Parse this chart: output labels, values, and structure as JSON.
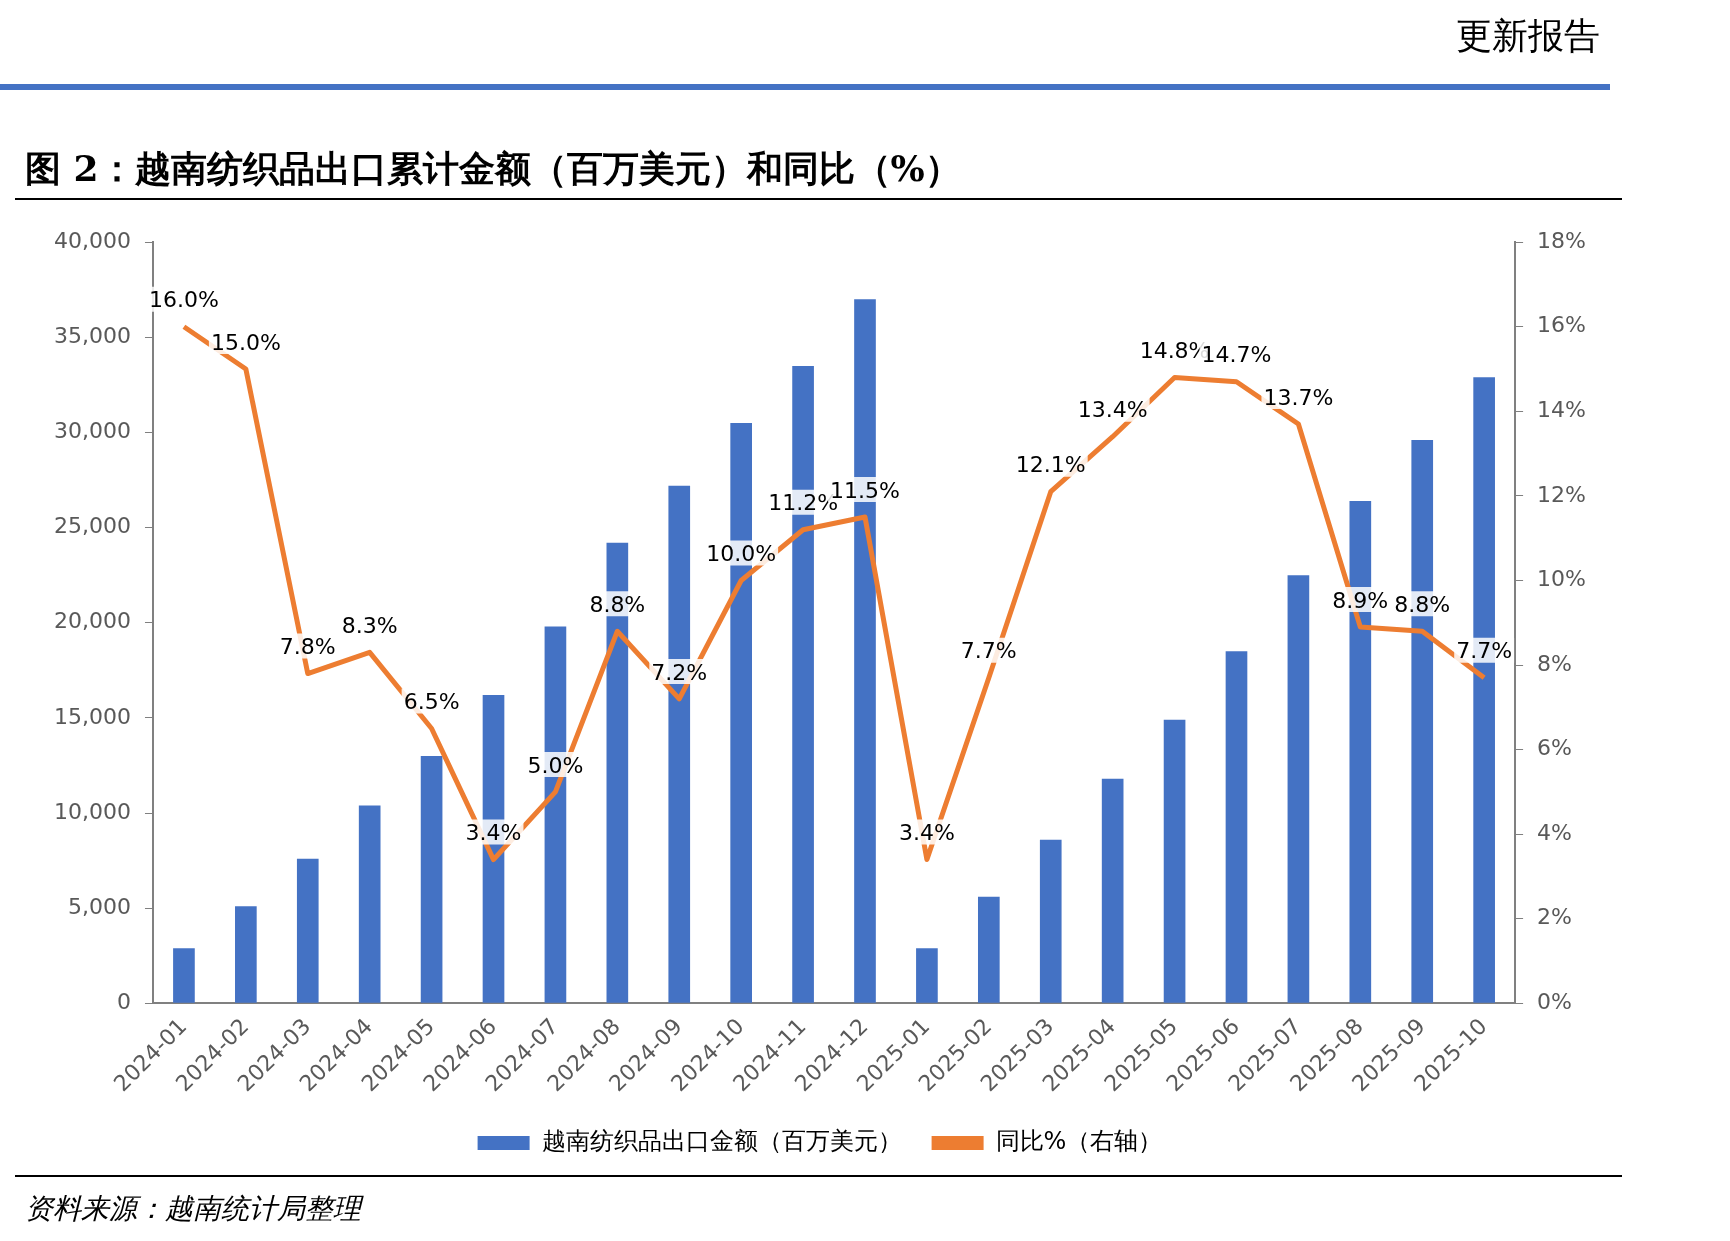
{
  "chart_data": {
    "type": "bar",
    "title": "图 2：越南纺织品出口累计金额（百万美元）和同比（%）",
    "categories": [
      "2024-01",
      "2024-02",
      "2024-03",
      "2024-04",
      "2024-05",
      "2024-06",
      "2024-07",
      "2024-08",
      "2024-09",
      "2024-10",
      "2024-11",
      "2024-12",
      "2025-01",
      "2025-02",
      "2025-03",
      "2025-04",
      "2025-05",
      "2025-06",
      "2025-07",
      "2025-08",
      "2025-09",
      "2025-10"
    ],
    "series": [
      {
        "name": "越南纺织品出口金额（百万美元）",
        "color": "#4472c4",
        "values": [
          2900,
          5100,
          7600,
          10400,
          13000,
          16200,
          19800,
          24200,
          27200,
          30500,
          33500,
          37000,
          2900,
          5600,
          8600,
          11800,
          14900,
          18500,
          22500,
          26400,
          29600,
          32900
        ]
      },
      {
        "name": "同比%（右轴）",
        "type": "line",
        "axis": "y2",
        "color": "#ed7d31",
        "values": [
          16.0,
          15.0,
          7.8,
          8.3,
          6.5,
          3.4,
          5.0,
          8.8,
          7.2,
          10.0,
          11.2,
          11.5,
          3.4,
          7.7,
          12.1,
          13.4,
          14.8,
          14.7,
          13.7,
          8.9,
          8.8,
          7.7
        ],
        "value_labels": [
          "16.0%",
          "15.0%",
          "7.8%",
          "8.3%",
          "6.5%",
          "3.4%",
          "5.0%",
          "8.8%",
          "7.2%",
          "10.0%",
          "11.2%",
          "11.5%",
          "3.4%",
          "7.7%",
          "12.1%",
          "13.4%",
          "14.8%",
          "14.7%",
          "13.7%",
          "8.9%",
          "8.8%",
          "7.7%"
        ]
      }
    ],
    "ylim": [
      0,
      40000
    ],
    "yticks": [
      {
        "value": 0,
        "label": "0"
      },
      {
        "value": 5000,
        "label": "5,000"
      },
      {
        "value": 10000,
        "label": "10,000"
      },
      {
        "value": 15000,
        "label": "15,000"
      },
      {
        "value": 20000,
        "label": "20,000"
      },
      {
        "value": 25000,
        "label": "25,000"
      },
      {
        "value": 30000,
        "label": "30,000"
      },
      {
        "value": 35000,
        "label": "35,000"
      },
      {
        "value": 40000,
        "label": "40,000"
      }
    ],
    "y2lim": [
      0,
      18
    ],
    "y2ticks": [
      {
        "value": 0,
        "label": "0%"
      },
      {
        "value": 2,
        "label": "2%"
      },
      {
        "value": 4,
        "label": "4%"
      },
      {
        "value": 6,
        "label": "6%"
      },
      {
        "value": 8,
        "label": "8%"
      },
      {
        "value": 10,
        "label": "10%"
      },
      {
        "value": 12,
        "label": "12%"
      },
      {
        "value": 14,
        "label": "14%"
      },
      {
        "value": 16,
        "label": "16%"
      },
      {
        "value": 18,
        "label": "18%"
      }
    ],
    "grid": false,
    "legend": "bottom",
    "marker": "none",
    "line_style": "solid",
    "annotations": [
      "更新报告",
      "资料来源：越南统计局整理"
    ]
  }
}
